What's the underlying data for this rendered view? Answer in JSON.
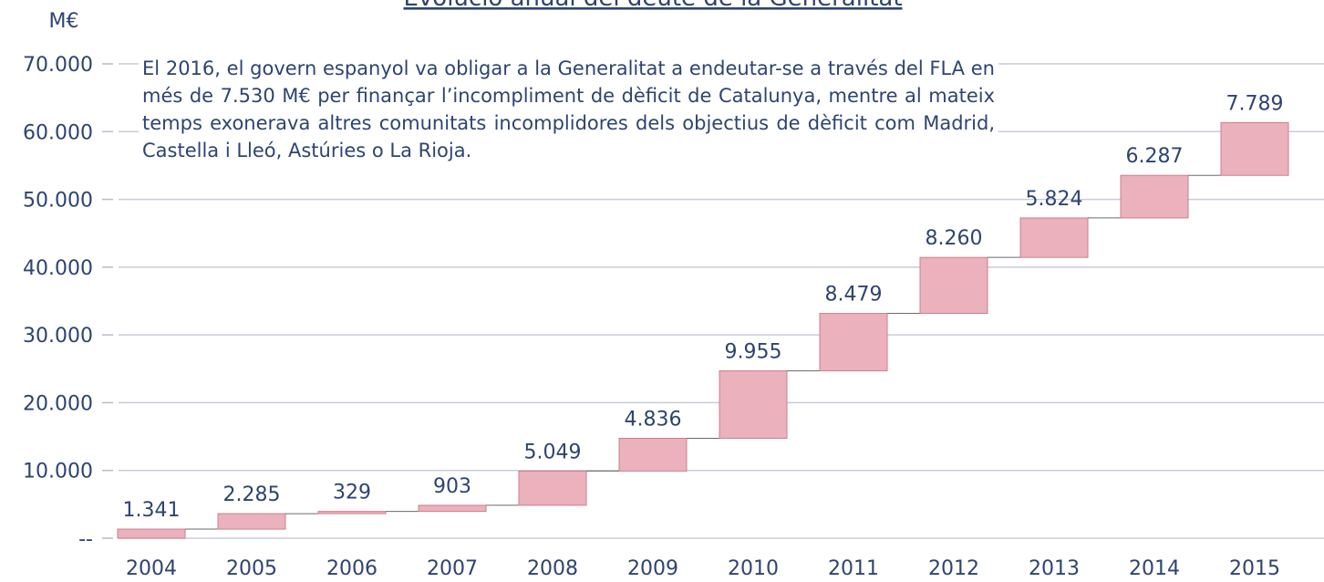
{
  "chart_data": {
    "type": "waterfall",
    "title": "Evolució anual del deute de la Generalitat",
    "y_label": "M€",
    "annotation": "El 2016, el govern espanyol va obligar a la Generalitat a endeutar-se a través del FLA en més de 7.530 M€ per finançar l’incompliment de dèficit de Catalunya, mentre al mateix temps exonerava altres comunitats incomplidores dels objectius de dèficit com Madrid, Castella i Lleó, Astúries o La Rioja.",
    "categories": [
      "2004",
      "2005",
      "2006",
      "2007",
      "2008",
      "2009",
      "2010",
      "2011",
      "2012",
      "2013",
      "2014",
      "2015"
    ],
    "values": [
      1341,
      2285,
      329,
      903,
      5049,
      4836,
      9955,
      8479,
      8260,
      5824,
      6287,
      7789
    ],
    "value_labels": [
      "1.341",
      "2.285",
      "329",
      "903",
      "5.049",
      "4.836",
      "9.955",
      "8.479",
      "8.260",
      "5.824",
      "6.287",
      "7.789"
    ],
    "color": "#ebb1bc",
    "edge_color": "#c98090",
    "ylim": [
      0,
      70000
    ],
    "yticks": [
      {
        "value": 0,
        "label": "--"
      },
      {
        "value": 10000,
        "label": "10.000"
      },
      {
        "value": 20000,
        "label": "20.000"
      },
      {
        "value": 30000,
        "label": "30.000"
      },
      {
        "value": 40000,
        "label": "40.000"
      },
      {
        "value": 50000,
        "label": "50.000"
      },
      {
        "value": 60000,
        "label": "60.000"
      },
      {
        "value": 70000,
        "label": "70.000"
      }
    ],
    "grid": true
  }
}
